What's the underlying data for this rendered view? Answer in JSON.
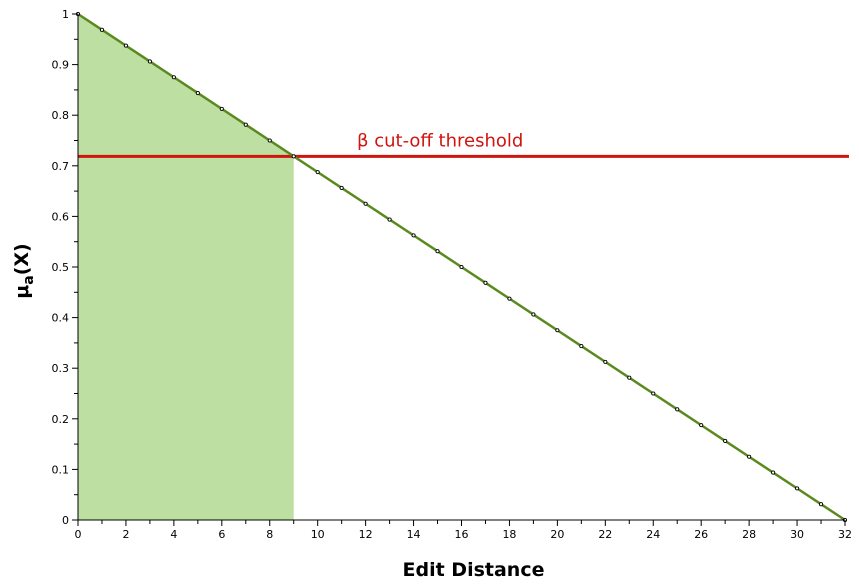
{
  "chart_data": {
    "type": "line",
    "xlabel": "Edit Distance",
    "ylabel_main": "μ",
    "ylabel_sub": "a",
    "ylabel_tail": "(X)",
    "xlim": [
      0,
      32
    ],
    "ylim": [
      0,
      1
    ],
    "x_ticks": [
      0,
      2,
      4,
      6,
      8,
      10,
      12,
      14,
      16,
      18,
      20,
      22,
      24,
      26,
      28,
      30,
      32
    ],
    "y_ticks": [
      0,
      0.1,
      0.2,
      0.3,
      0.4,
      0.5,
      0.6,
      0.7,
      0.8,
      0.9,
      1
    ],
    "series": [
      {
        "color": "#5a8a1e",
        "x": [
          0,
          1,
          2,
          3,
          4,
          5,
          6,
          7,
          8,
          9,
          10,
          11,
          12,
          13,
          14,
          15,
          16,
          17,
          18,
          19,
          20,
          21,
          22,
          23,
          24,
          25,
          26,
          27,
          28,
          29,
          30,
          31,
          32
        ],
        "y": [
          1,
          0.96875,
          0.9375,
          0.90625,
          0.875,
          0.84375,
          0.8125,
          0.78125,
          0.75,
          0.71875,
          0.6875,
          0.65625,
          0.625,
          0.59375,
          0.5625,
          0.53125,
          0.5,
          0.46875,
          0.4375,
          0.40625,
          0.375,
          0.34375,
          0.3125,
          0.28125,
          0.25,
          0.21875,
          0.1875,
          0.15625,
          0.125,
          0.09375,
          0.0625,
          0.03125,
          0
        ]
      }
    ],
    "shaded_region": {
      "x_from": 0,
      "x_to": 9,
      "color": "#bddfa2"
    },
    "threshold": {
      "y": 0.71875,
      "label": "β cut-off threshold",
      "color": "#d0140e"
    },
    "grid": false
  }
}
